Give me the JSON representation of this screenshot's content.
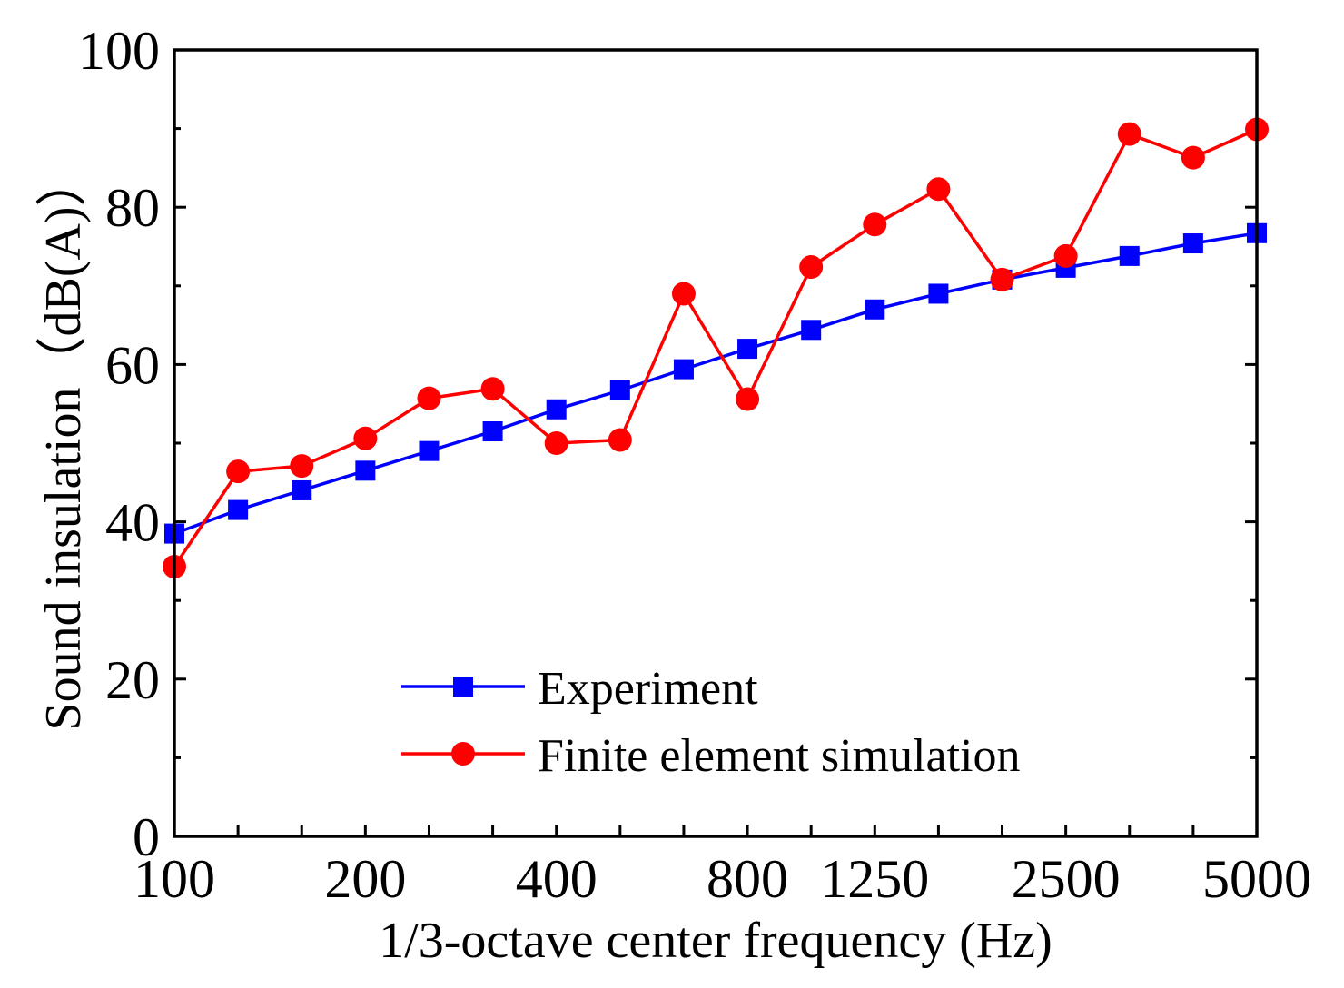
{
  "chart_data": {
    "type": "line",
    "title": "",
    "xlabel": "1/3-octave center frequency (Hz)",
    "ylabel": "Sound insulation（dB(A)）",
    "ylim": [
      0,
      100
    ],
    "yticks": [
      0,
      20,
      40,
      60,
      80,
      100
    ],
    "x": [
      "100",
      "125",
      "160",
      "200",
      "250",
      "315",
      "400",
      "500",
      "630",
      "800",
      "1000",
      "1250",
      "1600",
      "2000",
      "2500",
      "3150",
      "4000",
      "5000"
    ],
    "xtick_labels": [
      "100",
      "200",
      "400",
      "800",
      "1250",
      "2500",
      "5000"
    ],
    "legend_position": "bottom-center",
    "series": [
      {
        "name": "Experiment",
        "color": "#0000ff",
        "marker": "square",
        "values": [
          38.5,
          41.5,
          44.0,
          46.5,
          49.0,
          51.5,
          54.3,
          56.7,
          59.4,
          62.0,
          64.4,
          67.0,
          69.0,
          70.8,
          72.3,
          73.8,
          75.4,
          76.7
        ]
      },
      {
        "name": "Finite element simulation",
        "color": "#ff0000",
        "marker": "circle",
        "values": [
          34.3,
          46.4,
          47.1,
          50.6,
          55.7,
          56.9,
          50.0,
          50.4,
          69.0,
          55.6,
          72.4,
          77.8,
          82.3,
          70.8,
          73.8,
          89.3,
          86.3,
          89.9
        ]
      }
    ]
  }
}
